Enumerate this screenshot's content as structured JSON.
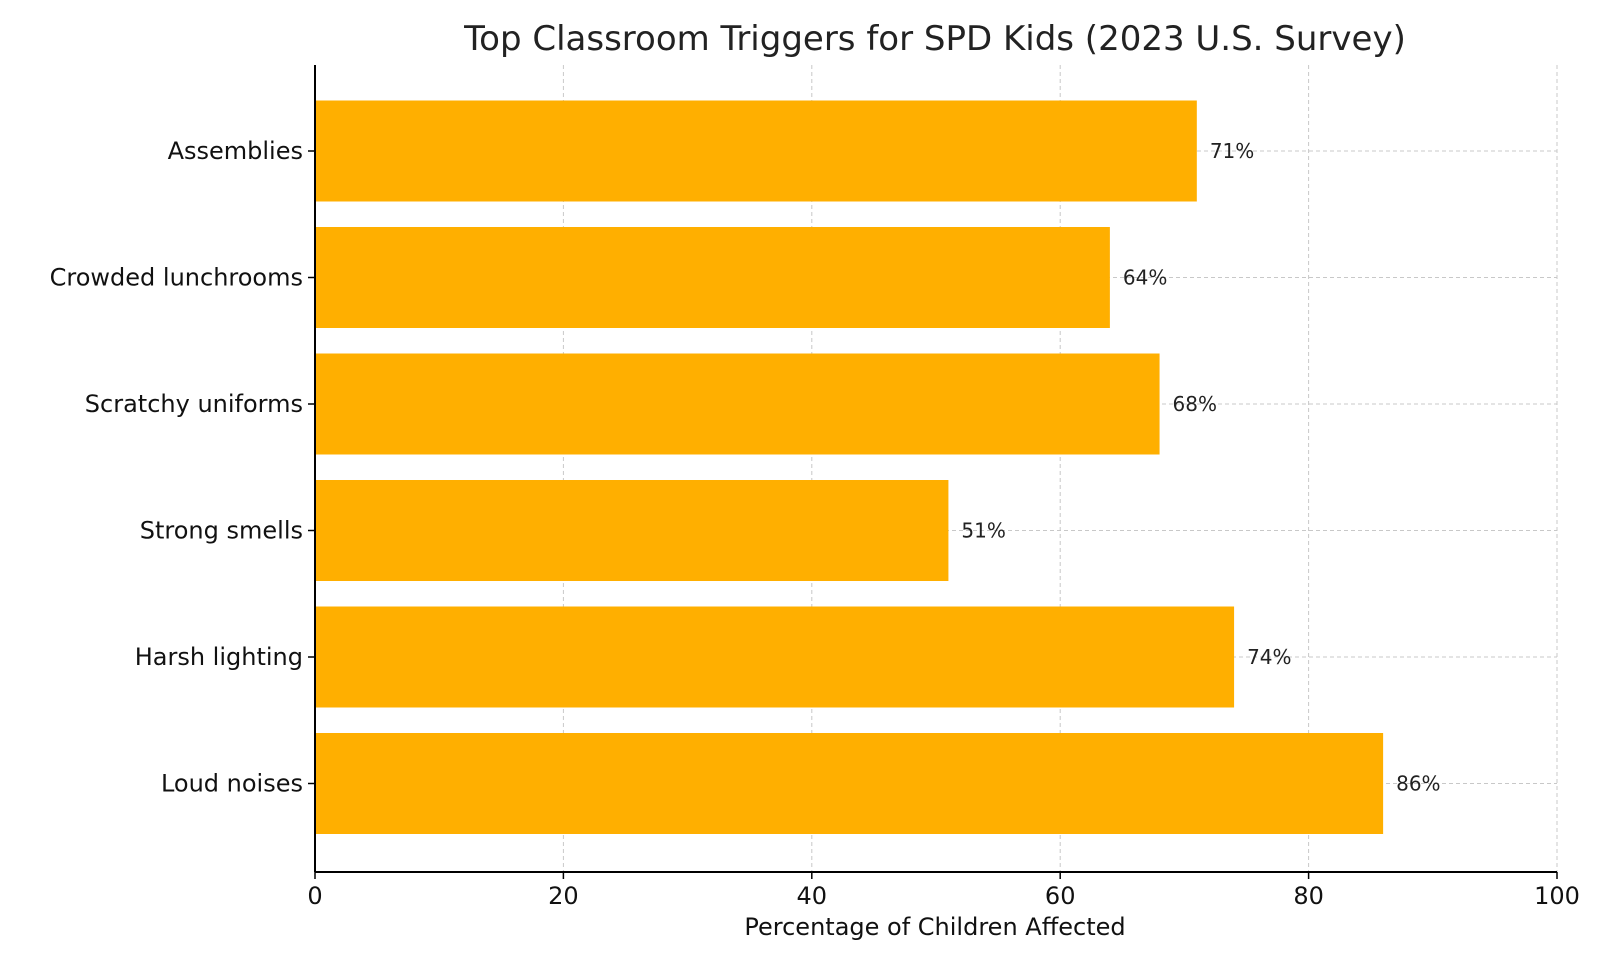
{
  "colors": {
    "bar": "#FFAF00",
    "grid": "#C8C8C8",
    "axis": "#000000",
    "text": "#222222"
  },
  "chart_data": {
    "type": "bar",
    "orientation": "horizontal",
    "title": "Top Classroom Triggers for SPD Kids (2023 U.S. Survey)",
    "xlabel": "Percentage of Children Affected",
    "ylabel": "",
    "xlim": [
      0,
      100
    ],
    "xticks": [
      0,
      20,
      40,
      60,
      80,
      100
    ],
    "grid": true,
    "categories": [
      "Assemblies",
      "Crowded lunchrooms",
      "Scratchy uniforms",
      "Strong smells",
      "Harsh lighting",
      "Loud noises"
    ],
    "values": [
      71,
      64,
      68,
      51,
      74,
      86
    ],
    "data_labels": [
      "71%",
      "64%",
      "68%",
      "51%",
      "74%",
      "86%"
    ]
  }
}
